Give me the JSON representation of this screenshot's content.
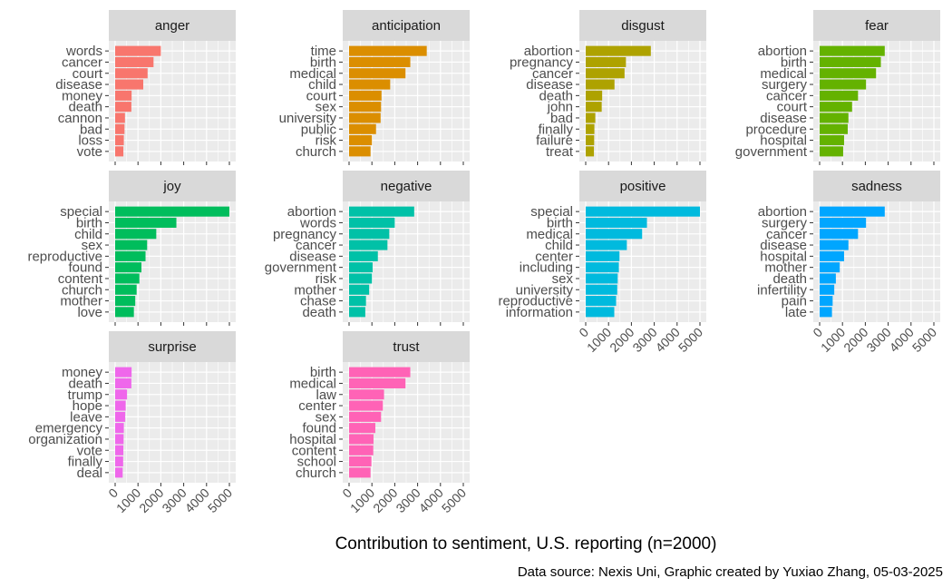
{
  "chart_data": {
    "type": "bar",
    "orientation": "horizontal",
    "facet_layout": "4 columns x 3 rows",
    "xlabel": "Contribution to sentiment, U.S. reporting (n=2000)",
    "caption": "Data source: Nexis Uni, Graphic created by Yuxiao Zhang, 05-03-2025",
    "xlim": [
      0,
      5000
    ],
    "xticks": [
      0,
      1000,
      2000,
      3000,
      4000,
      5000
    ],
    "grid": true,
    "legend": "none",
    "panels": [
      {
        "name": "anger",
        "color": "#F8766D",
        "categories": [
          "words",
          "cancer",
          "court",
          "disease",
          "money",
          "death",
          "cannon",
          "bad",
          "loss",
          "vote"
        ],
        "values": [
          2000,
          1680,
          1420,
          1230,
          720,
          710,
          430,
          410,
          380,
          360
        ]
      },
      {
        "name": "anticipation",
        "color": "#DB8E00",
        "categories": [
          "time",
          "birth",
          "medical",
          "child",
          "court",
          "sex",
          "university",
          "public",
          "risk",
          "church"
        ],
        "values": [
          3400,
          2680,
          2470,
          1800,
          1420,
          1400,
          1380,
          1180,
          1000,
          940
        ]
      },
      {
        "name": "disgust",
        "color": "#AEA200",
        "categories": [
          "abortion",
          "pregnancy",
          "cancer",
          "disease",
          "death",
          "john",
          "bad",
          "finally",
          "failure",
          "treat"
        ],
        "values": [
          2850,
          1760,
          1700,
          1260,
          720,
          700,
          420,
          380,
          370,
          360
        ]
      },
      {
        "name": "fear",
        "color": "#64B200",
        "categories": [
          "abortion",
          "birth",
          "medical",
          "surgery",
          "cancer",
          "court",
          "disease",
          "procedure",
          "hospital",
          "government"
        ],
        "values": [
          2850,
          2680,
          2470,
          2030,
          1680,
          1420,
          1260,
          1230,
          1070,
          1030
        ]
      },
      {
        "name": "joy",
        "color": "#00BD5C",
        "categories": [
          "special",
          "birth",
          "child",
          "sex",
          "reproductive",
          "found",
          "content",
          "church",
          "mother",
          "love"
        ],
        "values": [
          5000,
          2680,
          1800,
          1400,
          1330,
          1150,
          1060,
          940,
          880,
          820
        ]
      },
      {
        "name": "negative",
        "color": "#00C1A7",
        "categories": [
          "abortion",
          "words",
          "pregnancy",
          "cancer",
          "disease",
          "government",
          "risk",
          "mother",
          "chase",
          "death"
        ],
        "values": [
          2850,
          2000,
          1760,
          1680,
          1260,
          1030,
          1000,
          880,
          740,
          710
        ]
      },
      {
        "name": "positive",
        "color": "#00BADE",
        "categories": [
          "special",
          "birth",
          "medical",
          "child",
          "center",
          "including",
          "sex",
          "university",
          "reproductive",
          "information"
        ],
        "values": [
          5000,
          2680,
          2470,
          1800,
          1480,
          1450,
          1400,
          1380,
          1330,
          1250
        ]
      },
      {
        "name": "sadness",
        "color": "#00A6FF",
        "categories": [
          "abortion",
          "surgery",
          "cancer",
          "disease",
          "hospital",
          "mother",
          "death",
          "infertility",
          "pain",
          "late"
        ],
        "values": [
          2850,
          2030,
          1680,
          1260,
          1070,
          880,
          710,
          640,
          570,
          540
        ]
      },
      {
        "name": "surprise",
        "color": "#EF67EB",
        "categories": [
          "money",
          "death",
          "trump",
          "hope",
          "leave",
          "emergency",
          "organization",
          "vote",
          "finally",
          "deal"
        ],
        "values": [
          720,
          710,
          520,
          460,
          440,
          380,
          370,
          360,
          350,
          330
        ]
      },
      {
        "name": "trust",
        "color": "#FF63B6",
        "categories": [
          "birth",
          "medical",
          "law",
          "center",
          "sex",
          "found",
          "hospital",
          "content",
          "school",
          "church"
        ],
        "values": [
          2680,
          2470,
          1530,
          1480,
          1400,
          1150,
          1070,
          1060,
          980,
          940
        ]
      }
    ]
  }
}
